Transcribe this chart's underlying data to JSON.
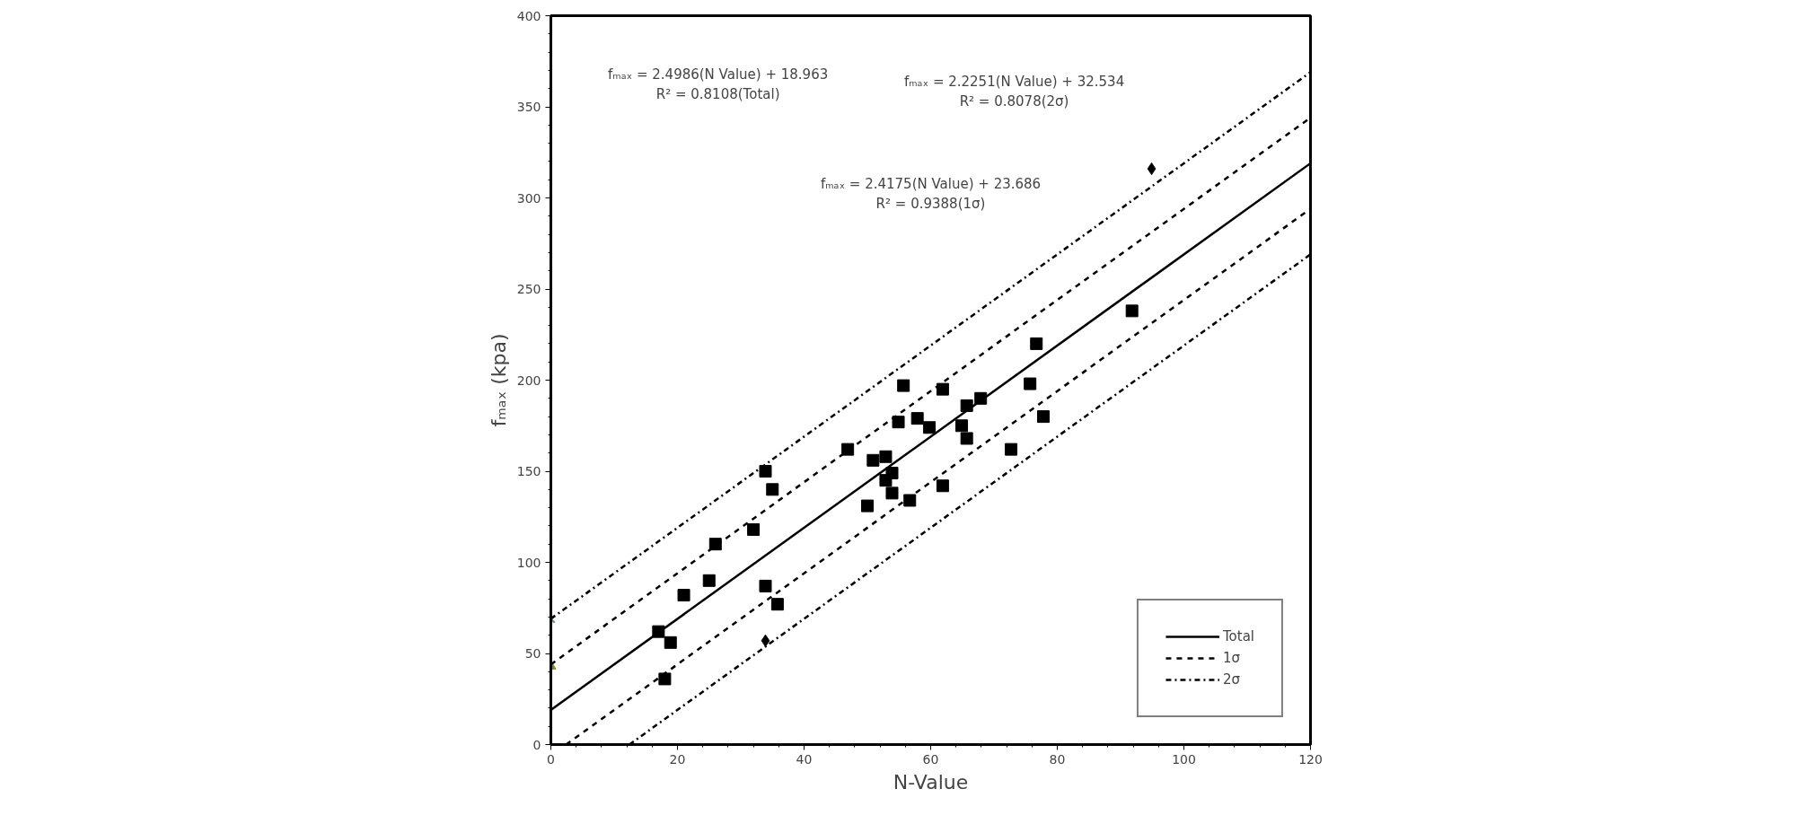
{
  "chart_data": {
    "type": "scatter",
    "xlabel": "N-Value",
    "ylabel": "fₘₐₓ (kpa)",
    "xlim": [
      0,
      120
    ],
    "ylim": [
      0,
      400
    ],
    "xticks": [
      0,
      20,
      40,
      60,
      80,
      100,
      120
    ],
    "yticks": [
      0,
      50,
      100,
      150,
      200,
      250,
      300,
      350,
      400
    ],
    "grid": false,
    "legend": "bottom right",
    "series": [
      {
        "color": "#000000",
        "marker": "square",
        "x": [
          17.0,
          18.9,
          18.0,
          21.0,
          25.0,
          26.0,
          32.0,
          33.9,
          35.0,
          33.9,
          35.8,
          46.9,
          50.0,
          50.9,
          52.9,
          52.9,
          53.9,
          53.9,
          56.7,
          55.7,
          54.9,
          57.9,
          59.8,
          61.9,
          65.7,
          67.9,
          64.9,
          65.7,
          61.9,
          72.7,
          76.7,
          75.7,
          77.8,
          91.8
        ],
        "values": [
          62,
          56,
          36,
          82,
          90,
          110,
          118,
          150,
          140,
          87,
          77,
          162,
          131,
          156,
          158,
          145,
          149,
          138,
          134,
          197,
          177,
          179,
          174,
          195,
          186,
          190,
          175,
          168,
          142,
          162,
          220,
          198,
          180,
          238
        ]
      },
      {
        "color": "#000000",
        "marker": "diamond",
        "x": [
          33.9,
          94.9
        ],
        "values": [
          57,
          316
        ]
      },
      {
        "color": "#4a8fb0",
        "marker": "cross",
        "x": [
          0
        ],
        "values": [
          69
        ]
      },
      {
        "color": "#7a8a40",
        "marker": "triangle",
        "x": [
          0
        ],
        "values": [
          43
        ]
      },
      {
        "type": "line",
        "name": "Total",
        "color": "#000000",
        "line_style": "solid",
        "x": [
          0,
          120
        ],
        "values": [
          19,
          319
        ]
      },
      {
        "type": "line",
        "name": "1σ",
        "color": "#000000",
        "line_style": "dashed",
        "x": [
          0,
          120
        ],
        "values": [
          44,
          344
        ]
      },
      {
        "type": "line",
        "color": "#000000",
        "line_style": "dashed",
        "x": [
          2.4,
          120
        ],
        "values": [
          0,
          294
        ]
      },
      {
        "type": "line",
        "name": "2σ",
        "color": "#000000",
        "line_style": "dashdot",
        "x": [
          0,
          120
        ],
        "values": [
          69,
          369
        ]
      },
      {
        "type": "line",
        "color": "#000000",
        "line_style": "dashdot",
        "x": [
          12.4,
          120
        ],
        "values": [
          0,
          269
        ]
      }
    ],
    "annotations": [
      "fₘₐₓ = 2.4986(N Value) + 18.963\nR² = 0.8108(Total)",
      "fₘₐₓ = 2.2251(N Value) + 32.534\nR² = 0.8078(2σ)",
      "fₘₐₓ = 2.4175(N Value) + 23.686\nR² = 0.9388(1σ)"
    ]
  }
}
